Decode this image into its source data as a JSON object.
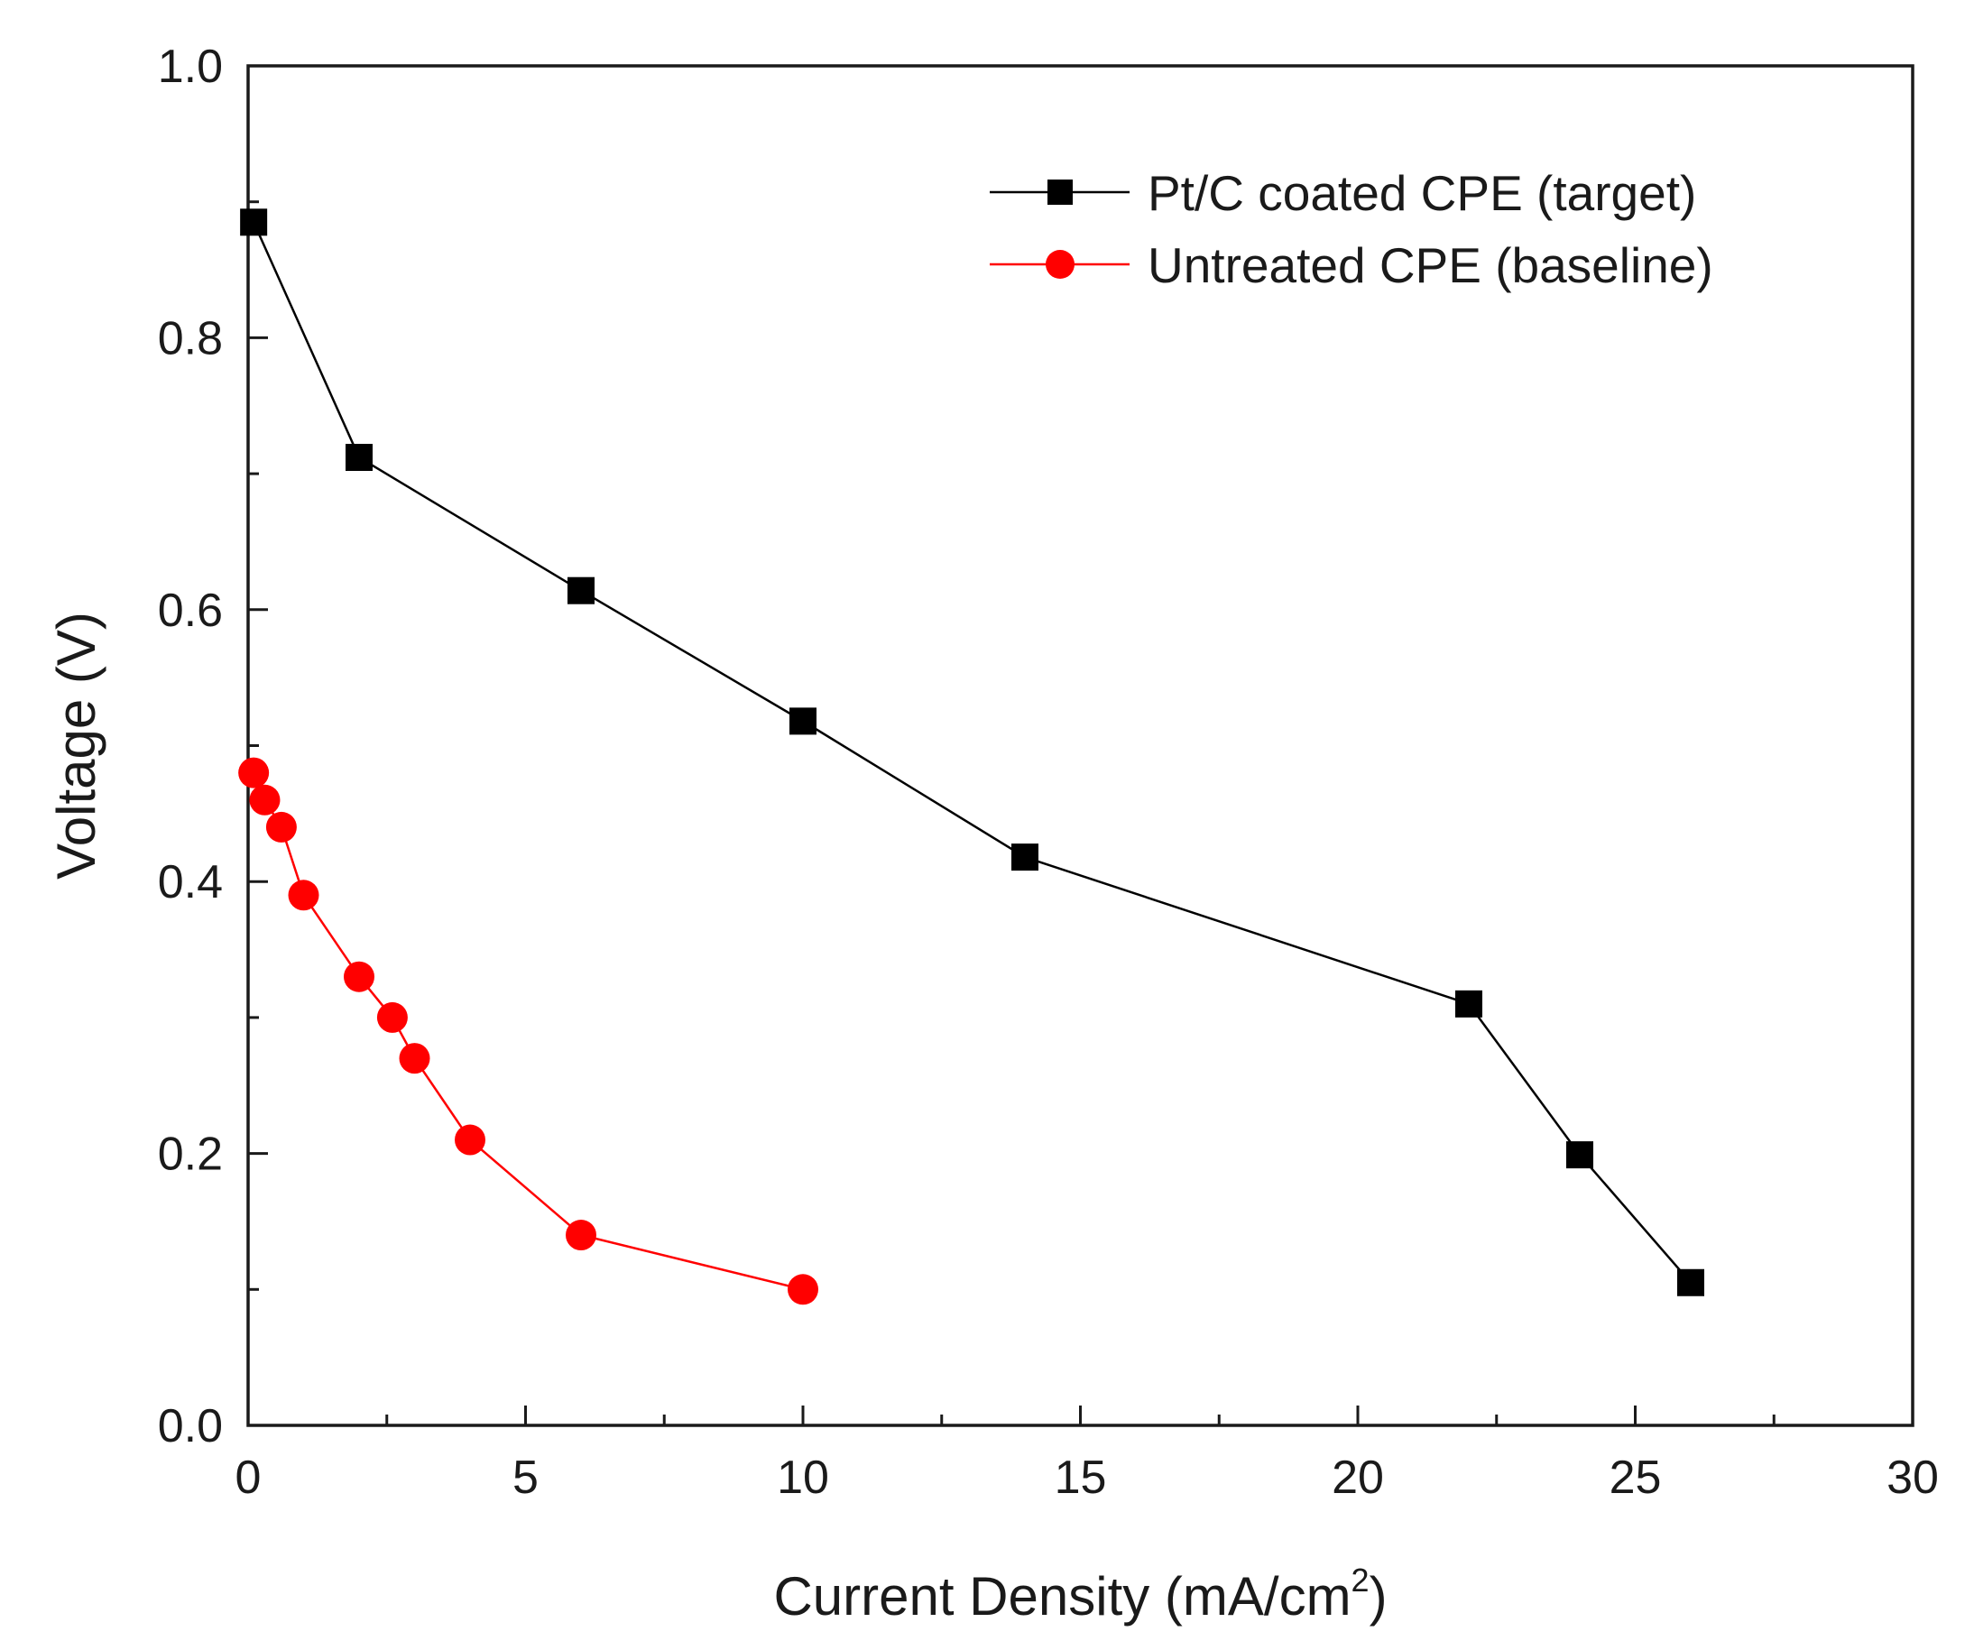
{
  "chart_data": {
    "type": "line",
    "xlabel": "Current Density (mA/cm",
    "xlabel_sup": "2",
    "xlabel_end": ")",
    "ylabel": "Voltage (V)",
    "xlim": [
      0,
      30
    ],
    "ylim": [
      0,
      1.0
    ],
    "x_ticks": [
      0,
      5,
      10,
      15,
      20,
      25,
      30
    ],
    "x_tick_labels": [
      "0",
      "5",
      "10",
      "15",
      "20",
      "25",
      "30"
    ],
    "y_ticks": [
      0.0,
      0.2,
      0.4,
      0.6,
      0.8,
      1.0
    ],
    "y_tick_labels": [
      "0.0",
      "0.2",
      "0.4",
      "0.6",
      "0.8",
      "1.0"
    ],
    "grid": false,
    "legend_position": "top-right",
    "series": [
      {
        "name": "Pt/C coated CPE (target)",
        "color": "#000000",
        "marker": "square",
        "x": [
          0.1,
          2,
          6,
          10,
          14,
          22,
          24,
          26
        ],
        "y": [
          0.885,
          0.712,
          0.614,
          0.518,
          0.418,
          0.31,
          0.199,
          0.105
        ]
      },
      {
        "name": "Untreated CPE (baseline)",
        "color": "#ff0000",
        "marker": "circle",
        "x": [
          0.1,
          0.3,
          0.6,
          1.0,
          2.0,
          2.6,
          3.0,
          4.0,
          6.0,
          10.0
        ],
        "y": [
          0.48,
          0.46,
          0.44,
          0.39,
          0.33,
          0.3,
          0.27,
          0.21,
          0.14,
          0.1
        ]
      }
    ]
  }
}
